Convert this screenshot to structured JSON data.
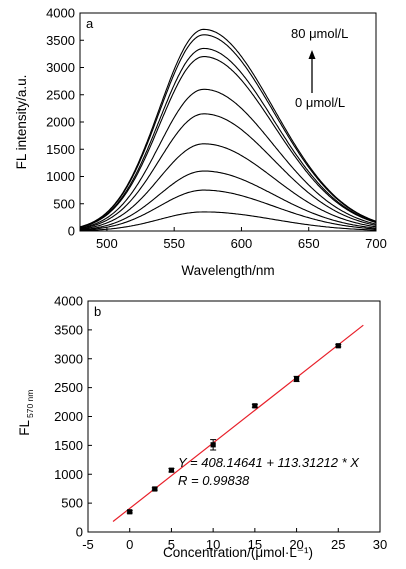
{
  "chart_data": [
    {
      "type": "line",
      "panel_label": "a",
      "xlabel": "Wavelength/nm",
      "ylabel": "FL intensity/a.u.",
      "xlim": [
        480,
        700
      ],
      "ylim": [
        0,
        4000
      ],
      "x_ticks": [
        500,
        550,
        600,
        650,
        700
      ],
      "y_ticks": [
        0,
        500,
        1000,
        1500,
        2000,
        2500,
        3000,
        3500,
        4000
      ],
      "annotation_top": "80 μmol/L",
      "annotation_bottom": "0 μmol/L",
      "peak_wavelength": 572,
      "series": [
        {
          "peak": 350
        },
        {
          "peak": 750
        },
        {
          "peak": 1100
        },
        {
          "peak": 1600
        },
        {
          "peak": 2150
        },
        {
          "peak": 2600
        },
        {
          "peak": 3200
        },
        {
          "peak": 3350
        },
        {
          "peak": 3600
        },
        {
          "peak": 3700
        }
      ]
    },
    {
      "type": "scatter",
      "panel_label": "b",
      "xlabel": "Concentration/(μmol·L⁻¹)",
      "ylabel": "FL",
      "ylabel_sub": "570 nm",
      "xlim": [
        -5,
        30
      ],
      "ylim": [
        0,
        4000
      ],
      "x_ticks": [
        -5,
        0,
        5,
        10,
        15,
        20,
        25,
        30
      ],
      "y_ticks": [
        0,
        500,
        1000,
        1500,
        2000,
        2500,
        3000,
        3500,
        4000
      ],
      "points": [
        {
          "x": 0,
          "y": 350,
          "err": 20
        },
        {
          "x": 3,
          "y": 745,
          "err": 20
        },
        {
          "x": 5,
          "y": 1070,
          "err": 30
        },
        {
          "x": 10,
          "y": 1510,
          "err": 90
        },
        {
          "x": 15,
          "y": 2185,
          "err": 25
        },
        {
          "x": 20,
          "y": 2650,
          "err": 45
        },
        {
          "x": 25,
          "y": 3225,
          "err": 20
        }
      ],
      "fit": {
        "intercept": 408.14641,
        "slope": 113.31212,
        "x_range": [
          -2,
          28
        ],
        "color": "#e8202a"
      },
      "equation_text": "Y = 408.14641 + 113.31212 * X",
      "r_text": "R = 0.99838"
    }
  ]
}
